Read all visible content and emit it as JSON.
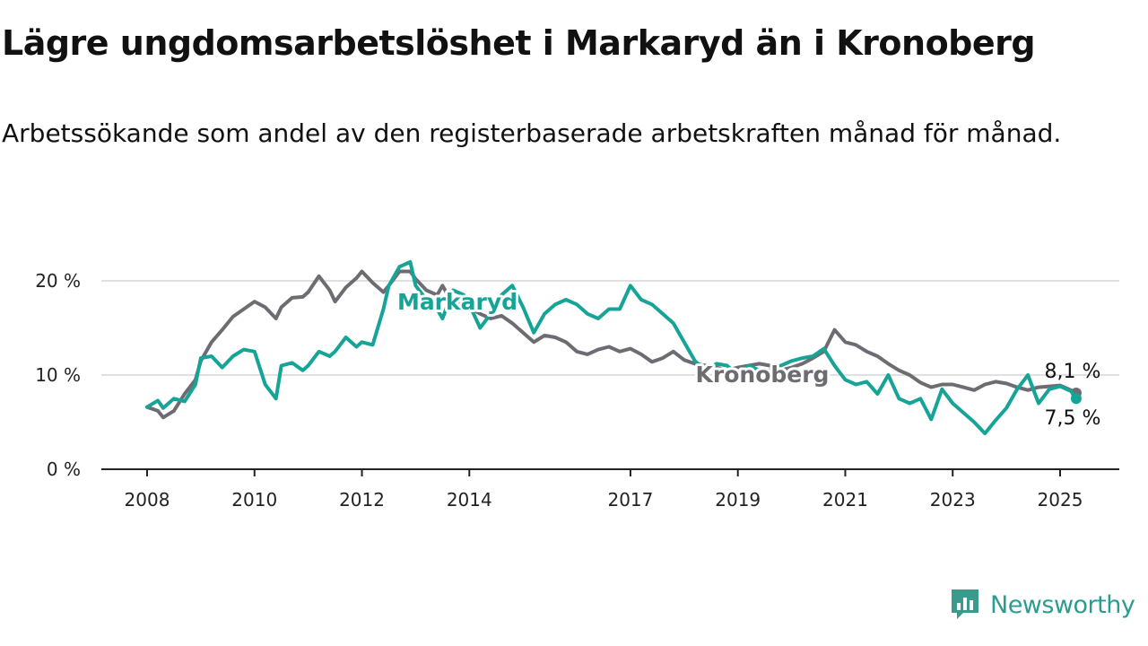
{
  "title": "Lägre ungdomsarbetslöshet i Markaryd än i Kronoberg",
  "subtitle": "Arbetssökande som andel av den registerbaserade arbetskraften månad för månad.",
  "brand": {
    "name": "Newsworthy",
    "icon": "newsworthy-logo-icon",
    "color": "#3a9a8c"
  },
  "chart_data": {
    "type": "line",
    "xlabel": "",
    "ylabel": "",
    "ylim": [
      0,
      22
    ],
    "xlim": [
      2007.9,
      2025.5
    ],
    "grid": true,
    "y_ticks": [
      {
        "value": 0,
        "label": "0 %"
      },
      {
        "value": 10,
        "label": "10 %"
      },
      {
        "value": 20,
        "label": "20 %"
      }
    ],
    "x_ticks": [
      {
        "value": 2008,
        "label": "2008"
      },
      {
        "value": 2010,
        "label": "2010"
      },
      {
        "value": 2012,
        "label": "2012"
      },
      {
        "value": 2014,
        "label": "2014"
      },
      {
        "value": 2017,
        "label": "2017"
      },
      {
        "value": 2019,
        "label": "2019"
      },
      {
        "value": 2021,
        "label": "2021"
      },
      {
        "value": 2023,
        "label": "2023"
      },
      {
        "value": 2025,
        "label": "2025"
      }
    ],
    "series": [
      {
        "name": "Kronoberg",
        "color": "#6e6c72",
        "end_label": "8,1 %",
        "x": [
          2008.0,
          2008.2,
          2008.3,
          2008.5,
          2008.7,
          2008.9,
          2009.0,
          2009.2,
          2009.4,
          2009.6,
          2009.8,
          2010.0,
          2010.2,
          2010.4,
          2010.5,
          2010.7,
          2010.9,
          2011.0,
          2011.2,
          2011.4,
          2011.5,
          2011.7,
          2011.9,
          2012.0,
          2012.2,
          2012.4,
          2012.5,
          2012.7,
          2012.9,
          2013.0,
          2013.2,
          2013.4,
          2013.5,
          2013.7,
          2013.9,
          2014.0,
          2014.2,
          2014.4,
          2014.6,
          2014.8,
          2015.0,
          2015.2,
          2015.4,
          2015.6,
          2015.8,
          2016.0,
          2016.2,
          2016.4,
          2016.6,
          2016.8,
          2017.0,
          2017.2,
          2017.4,
          2017.6,
          2017.8,
          2018.0,
          2018.2,
          2018.4,
          2018.6,
          2018.8,
          2019.0,
          2019.2,
          2019.4,
          2019.6,
          2019.8,
          2020.0,
          2020.2,
          2020.4,
          2020.6,
          2020.8,
          2021.0,
          2021.2,
          2021.4,
          2021.6,
          2021.8,
          2022.0,
          2022.2,
          2022.4,
          2022.6,
          2022.8,
          2023.0,
          2023.2,
          2023.4,
          2023.6,
          2023.8,
          2024.0,
          2024.2,
          2024.4,
          2024.6,
          2024.8,
          2025.0,
          2025.2,
          2025.3
        ],
        "y": [
          6.6,
          6.2,
          5.5,
          6.2,
          8.0,
          9.5,
          11.5,
          13.5,
          14.8,
          16.2,
          17.0,
          17.8,
          17.2,
          16.0,
          17.2,
          18.2,
          18.3,
          18.8,
          20.5,
          19.0,
          17.8,
          19.3,
          20.3,
          21.0,
          19.8,
          18.8,
          19.5,
          21.0,
          21.0,
          20.2,
          19.0,
          18.5,
          19.5,
          17.5,
          18.0,
          17.2,
          16.5,
          16.0,
          16.3,
          15.5,
          14.5,
          13.5,
          14.2,
          14.0,
          13.5,
          12.5,
          12.2,
          12.7,
          13.0,
          12.5,
          12.8,
          12.2,
          11.4,
          11.8,
          12.5,
          11.6,
          11.2,
          11.0,
          10.8,
          10.5,
          10.8,
          11.0,
          11.2,
          11.0,
          10.5,
          10.8,
          11.2,
          11.8,
          12.5,
          14.8,
          13.5,
          13.2,
          12.5,
          12.0,
          11.2,
          10.5,
          10.0,
          9.2,
          8.7,
          9.0,
          9.0,
          8.7,
          8.4,
          9.0,
          9.3,
          9.1,
          8.7,
          8.4,
          8.7,
          8.8,
          8.9,
          8.4,
          8.1
        ]
      },
      {
        "name": "Markaryd",
        "color": "#16a497",
        "end_label": "7,5 %",
        "x": [
          2008.0,
          2008.2,
          2008.3,
          2008.5,
          2008.7,
          2008.9,
          2009.0,
          2009.2,
          2009.4,
          2009.6,
          2009.8,
          2010.0,
          2010.2,
          2010.4,
          2010.5,
          2010.7,
          2010.9,
          2011.0,
          2011.2,
          2011.4,
          2011.5,
          2011.7,
          2011.9,
          2012.0,
          2012.2,
          2012.4,
          2012.5,
          2012.7,
          2012.9,
          2013.0,
          2013.2,
          2013.4,
          2013.5,
          2013.7,
          2013.9,
          2014.0,
          2014.2,
          2014.4,
          2014.6,
          2014.8,
          2015.0,
          2015.2,
          2015.4,
          2015.6,
          2015.8,
          2016.0,
          2016.2,
          2016.4,
          2016.6,
          2016.8,
          2017.0,
          2017.2,
          2017.4,
          2017.6,
          2017.8,
          2018.0,
          2018.2,
          2018.4,
          2018.6,
          2018.8,
          2019.0,
          2019.2,
          2019.4,
          2019.6,
          2019.8,
          2020.0,
          2020.2,
          2020.4,
          2020.6,
          2020.8,
          2021.0,
          2021.2,
          2021.4,
          2021.6,
          2021.8,
          2022.0,
          2022.2,
          2022.4,
          2022.6,
          2022.8,
          2023.0,
          2023.2,
          2023.4,
          2023.6,
          2023.8,
          2024.0,
          2024.2,
          2024.4,
          2024.6,
          2024.8,
          2025.0,
          2025.2,
          2025.3
        ],
        "y": [
          6.6,
          7.3,
          6.5,
          7.5,
          7.2,
          9.0,
          11.8,
          12.0,
          10.8,
          12.0,
          12.7,
          12.5,
          9.0,
          7.5,
          11.0,
          11.3,
          10.5,
          11.0,
          12.5,
          12.0,
          12.5,
          14.0,
          13.0,
          13.5,
          13.2,
          17.0,
          19.5,
          21.5,
          22.0,
          19.5,
          18.0,
          17.0,
          16.0,
          19.0,
          18.5,
          17.5,
          15.0,
          16.5,
          18.5,
          19.5,
          17.2,
          14.5,
          16.5,
          17.5,
          18.0,
          17.5,
          16.5,
          16.0,
          17.0,
          17.0,
          19.5,
          18.0,
          17.5,
          16.5,
          15.5,
          13.5,
          11.5,
          10.5,
          11.2,
          11.0,
          10.0,
          11.0,
          10.5,
          10.5,
          11.0,
          11.5,
          11.8,
          12.0,
          12.8,
          11.0,
          9.5,
          9.0,
          9.3,
          8.0,
          10.0,
          7.5,
          7.0,
          7.5,
          5.3,
          8.5,
          7.0,
          6.0,
          5.0,
          3.8,
          5.2,
          6.5,
          8.5,
          10.0,
          7.0,
          8.5,
          8.8,
          8.3,
          7.5
        ]
      }
    ]
  }
}
